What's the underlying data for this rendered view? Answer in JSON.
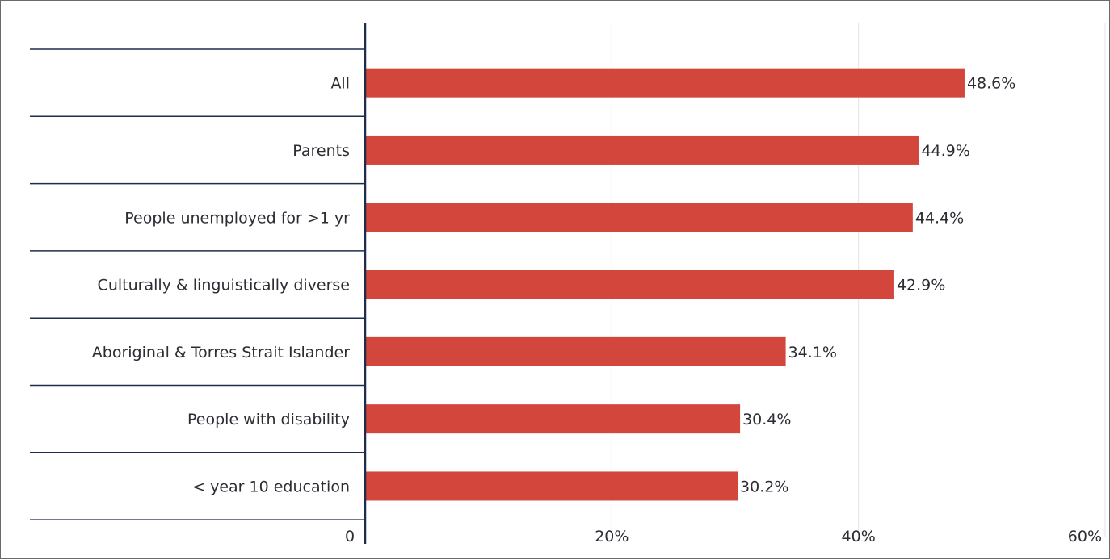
{
  "chart_data": {
    "type": "bar",
    "orientation": "horizontal",
    "categories": [
      "All",
      "Parents",
      "People unemployed for >1 yr",
      "Culturally & linguistically diverse",
      "Aboriginal & Torres Strait Islander",
      "People with disability",
      "< year 10 education"
    ],
    "values": [
      48.6,
      44.9,
      44.4,
      42.9,
      34.1,
      30.4,
      30.2
    ],
    "value_labels": [
      "48.6%",
      "44.9%",
      "44.4%",
      "42.9%",
      "34.1%",
      "30.4%",
      "30.2%"
    ],
    "xlim": [
      0,
      60
    ],
    "x_ticks": [
      0,
      20,
      40,
      60
    ],
    "x_tick_labels": [
      "0",
      "20%",
      "40%",
      "60%"
    ],
    "grid": "vertical",
    "bar_color": "#d2463c",
    "axis_color": "#1e2d4a",
    "separator_color": "#1e2d4a",
    "grid_color": "#e4e4e4",
    "text_color": "#2b2d33"
  }
}
